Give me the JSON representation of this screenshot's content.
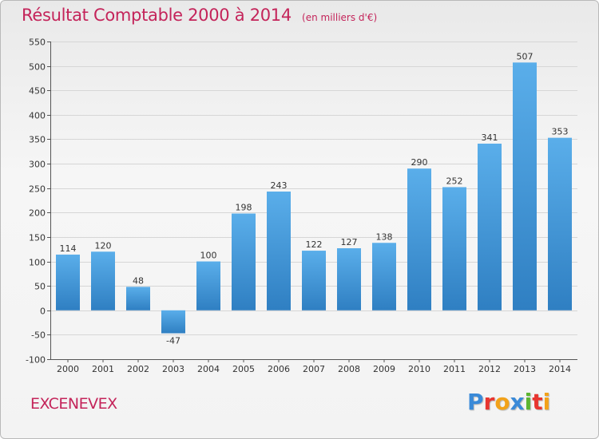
{
  "header": {
    "title": "Résultat Comptable 2000 à 2014",
    "subtitle": "(en milliers d'€)"
  },
  "footer": {
    "commune": "EXCENEVEX",
    "logo_letters": [
      {
        "ch": "P",
        "color": "#3a8ad8"
      },
      {
        "ch": "r",
        "color": "#e8352f"
      },
      {
        "ch": "o",
        "color": "#f2a21a"
      },
      {
        "ch": "x",
        "color": "#3a8ad8"
      },
      {
        "ch": "i",
        "color": "#5cb531"
      },
      {
        "ch": "t",
        "color": "#e8352f"
      },
      {
        "ch": "i",
        "color": "#f2a21a"
      }
    ]
  },
  "colors": {
    "bar_top": "#5aaeea",
    "bar_bottom": "#2f7fc2",
    "grid": "#d6d6d6",
    "axis": "#555555",
    "text": "#333333",
    "accent": "#c4245a"
  },
  "chart_data": {
    "type": "bar",
    "title": "Résultat Comptable 2000 à 2014",
    "xlabel": "",
    "ylabel": "",
    "ylim": [
      -100,
      550
    ],
    "yticks": [
      -100,
      -50,
      0,
      50,
      100,
      150,
      200,
      250,
      300,
      350,
      400,
      450,
      500,
      550
    ],
    "grid": true,
    "categories": [
      "2000",
      "2001",
      "2002",
      "2003",
      "2004",
      "2005",
      "2006",
      "2007",
      "2008",
      "2009",
      "2010",
      "2011",
      "2012",
      "2013",
      "2014"
    ],
    "values": [
      114,
      120,
      48,
      -47,
      100,
      198,
      243,
      122,
      127,
      138,
      290,
      252,
      341,
      507,
      353
    ]
  }
}
